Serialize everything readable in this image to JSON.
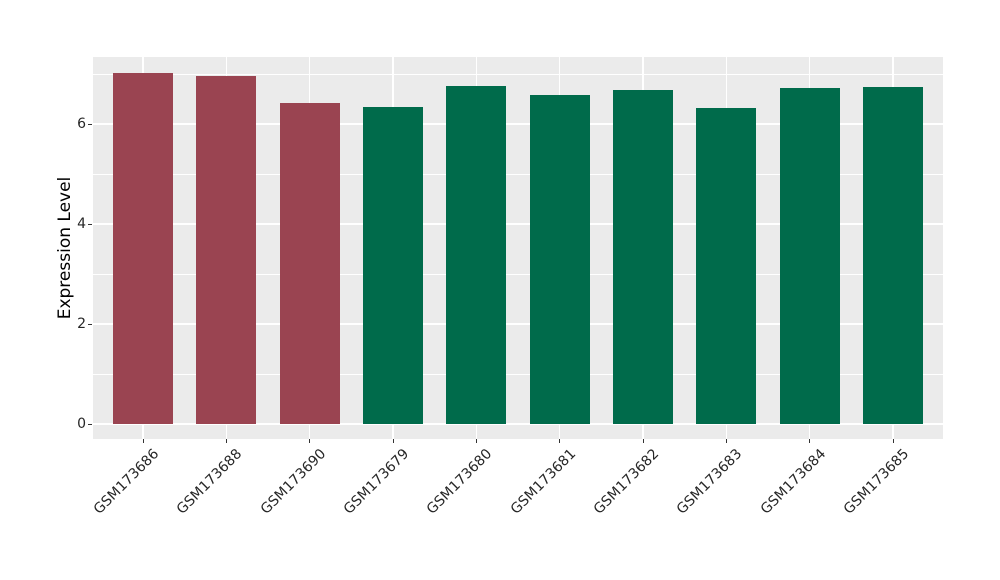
{
  "chart_data": {
    "type": "bar",
    "title": "",
    "xlabel": "",
    "ylabel": "Expression Level",
    "categories": [
      "GSM173686",
      "GSM173688",
      "GSM173690",
      "GSM173679",
      "GSM173680",
      "GSM173681",
      "GSM173682",
      "GSM173683",
      "GSM173684",
      "GSM173685"
    ],
    "values": [
      7.02,
      6.96,
      6.42,
      6.34,
      6.77,
      6.59,
      6.69,
      6.33,
      6.72,
      6.74
    ],
    "bar_colors": [
      "#9A4451",
      "#9A4451",
      "#9A4451",
      "#006B4B",
      "#006B4B",
      "#006B4B",
      "#006B4B",
      "#006B4B",
      "#006B4B",
      "#006B4B"
    ],
    "y_ticks": [
      0,
      2,
      4,
      6
    ],
    "y_minor_ticks": [
      1,
      3,
      5,
      7
    ],
    "ylim": [
      -0.34,
      7.3
    ],
    "grid": true,
    "legend_position": "none",
    "colors": {
      "figure_background": "#FFFFFF",
      "panel_background": "#EBEBEB",
      "grid_major": "#FFFFFF",
      "grid_minor": "#FFFFFF",
      "bar_group_a": "#9A4451",
      "bar_group_b": "#006B4B",
      "axis_text": "#262626",
      "axis_title": "#000000",
      "tick_mark": "#333333"
    }
  }
}
